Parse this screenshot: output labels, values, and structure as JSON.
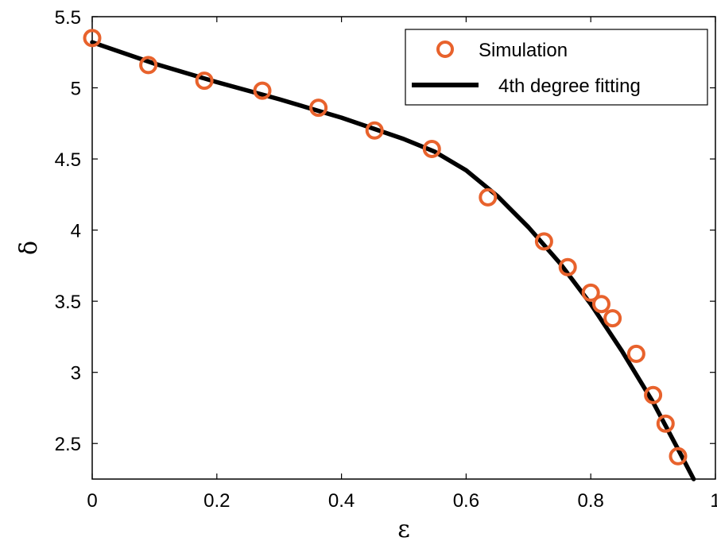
{
  "chart_data": {
    "type": "scatter",
    "xlabel": "ε",
    "ylabel": "δ",
    "xlim": [
      0,
      1
    ],
    "ylim": [
      2.25,
      5.5
    ],
    "x_ticks": [
      0,
      0.2,
      0.4,
      0.6,
      0.8,
      1
    ],
    "x_tick_labels": [
      "0",
      "0.2",
      "0.4",
      "0.6",
      "0.8",
      "1"
    ],
    "y_ticks": [
      2.5,
      3,
      3.5,
      4,
      4.5,
      5,
      5.5
    ],
    "y_tick_labels": [
      "2.5",
      "3",
      "3.5",
      "4",
      "4.5",
      "5",
      "5.5"
    ],
    "grid": false,
    "legend_position": "top-right",
    "series": [
      {
        "name": "Simulation",
        "kind": "scatter",
        "marker": "circle-open",
        "color": "#e8622c",
        "x": [
          0.0,
          0.09,
          0.18,
          0.273,
          0.363,
          0.453,
          0.545,
          0.635,
          0.725,
          0.763,
          0.8,
          0.817,
          0.835,
          0.873,
          0.9,
          0.92,
          0.94
        ],
        "y": [
          5.35,
          5.16,
          5.05,
          4.98,
          4.86,
          4.7,
          4.57,
          4.23,
          3.92,
          3.74,
          3.56,
          3.48,
          3.38,
          3.13,
          2.84,
          2.64,
          2.41
        ]
      },
      {
        "name": "4th degree fitting",
        "kind": "line",
        "color": "#000000",
        "x": [
          0.0,
          0.1,
          0.2,
          0.3,
          0.4,
          0.5,
          0.55,
          0.6,
          0.65,
          0.7,
          0.75,
          0.8,
          0.85,
          0.9,
          0.94,
          0.965
        ],
        "y": [
          5.32,
          5.17,
          5.04,
          4.92,
          4.79,
          4.64,
          4.55,
          4.42,
          4.24,
          4.02,
          3.77,
          3.48,
          3.15,
          2.79,
          2.46,
          2.25
        ]
      }
    ]
  }
}
